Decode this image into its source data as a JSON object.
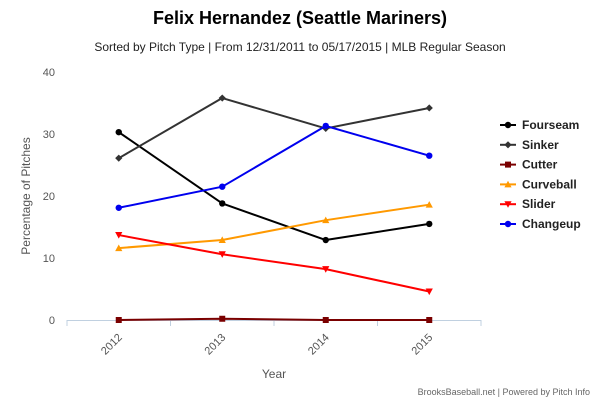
{
  "chart_data": {
    "type": "line",
    "title": "Felix Hernandez (Seattle Mariners)",
    "subtitle": "Sorted by Pitch Type | From 12/31/2011 to 05/17/2015 | MLB Regular Season",
    "xlabel": "Year",
    "ylabel": "Percentage of Pitches",
    "categories": [
      "2012",
      "2013",
      "2014",
      "2015"
    ],
    "ylim": [
      0,
      40
    ],
    "yticks": [
      0,
      10,
      20,
      30,
      40
    ],
    "grid": false,
    "legend_position": "right",
    "series": [
      {
        "name": "Fourseam",
        "color": "#000000",
        "marker": "circle",
        "values": [
          30.3,
          18.8,
          12.9,
          15.5
        ]
      },
      {
        "name": "Sinker",
        "color": "#333333",
        "marker": "diamond",
        "values": [
          26.1,
          35.8,
          30.9,
          34.2
        ]
      },
      {
        "name": "Cutter",
        "color": "#7a0000",
        "marker": "square",
        "values": [
          0.0,
          0.2,
          0.0,
          0.0
        ]
      },
      {
        "name": "Curveball",
        "color": "#ff9900",
        "marker": "triangle",
        "values": [
          11.6,
          12.9,
          16.1,
          18.6
        ]
      },
      {
        "name": "Slider",
        "color": "#ff0000",
        "marker": "triangle-down",
        "values": [
          13.7,
          10.6,
          8.2,
          4.6
        ]
      },
      {
        "name": "Changeup",
        "color": "#0000ee",
        "marker": "circle",
        "values": [
          18.1,
          21.5,
          31.3,
          26.5
        ]
      }
    ],
    "credits": "BrooksBaseball.net | Powered by Pitch Info"
  }
}
